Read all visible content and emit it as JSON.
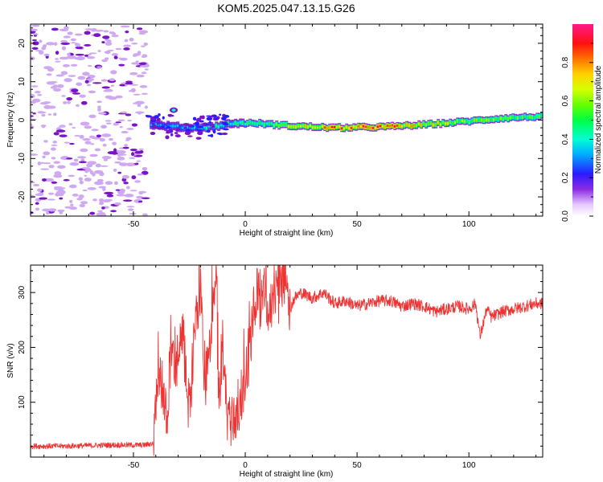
{
  "title": "KOM5.2025.047.13.15.G26",
  "colors": {
    "snr_line": "#ee3333",
    "spectrum_outline": "#7a14c8",
    "spectrum_speckle": "#cfa8f2"
  },
  "chart_data": [
    {
      "type": "heatmap",
      "name": "spectrogram",
      "xlabel": "Height of straight line (km)",
      "ylabel": "Frequency (Hz)",
      "xlim": [
        -96,
        133
      ],
      "ylim": [
        -25,
        25
      ],
      "xticks": [
        -50,
        0,
        50,
        100
      ],
      "yticks": [
        -20,
        -10,
        0,
        10,
        20
      ],
      "colorbar": {
        "label": "Normalized spectral amplitude",
        "range": [
          0,
          1
        ],
        "ticks": [
          "0.0",
          "0.2",
          "0.4",
          "0.6",
          "0.8"
        ],
        "tick_values": [
          0.0,
          0.2,
          0.4,
          0.6,
          0.8
        ]
      },
      "ridge": {
        "x": [
          -42,
          -35,
          -25,
          -15,
          -5,
          5,
          20,
          40,
          60,
          80,
          100,
          115,
          133
        ],
        "y": [
          -1.2,
          -1.5,
          -2.0,
          -1.8,
          -0.8,
          -0.8,
          -1.5,
          -2.0,
          -1.8,
          -1.2,
          -0.3,
          0.5,
          1.0
        ],
        "amplitude": [
          0.3,
          0.3,
          0.35,
          0.4,
          0.45,
          0.45,
          0.6,
          0.85,
          0.85,
          0.7,
          0.55,
          0.55,
          0.5
        ]
      },
      "noise_region_x": [
        -96,
        -44
      ]
    },
    {
      "type": "line",
      "name": "snr",
      "xlabel": "Height of straight line (km)",
      "ylabel": "SNR (v/v)",
      "xlim": [
        -96,
        133
      ],
      "ylim": [
        0,
        350
      ],
      "xticks": [
        -50,
        0,
        50,
        100
      ],
      "yticks": [
        100,
        200,
        300
      ],
      "series": [
        {
          "x": [
            -96,
            -80,
            -60,
            -45,
            -41,
            -39,
            -37,
            -35,
            -33,
            -31,
            -28,
            -25,
            -22,
            -20,
            -18,
            -15,
            -13,
            -12,
            -10,
            -8,
            -5,
            -2,
            0,
            2,
            4,
            6,
            7,
            8,
            10,
            12,
            15,
            18,
            20,
            22,
            25,
            30,
            35,
            40,
            45,
            50,
            55,
            60,
            65,
            70,
            75,
            80,
            85,
            90,
            95,
            100,
            103,
            105,
            108,
            110,
            115,
            120,
            125,
            130,
            133
          ],
          "y": [
            20,
            20,
            22,
            22,
            25,
            160,
            120,
            80,
            200,
            150,
            220,
            90,
            250,
            310,
            130,
            220,
            330,
            100,
            200,
            80,
            70,
            100,
            140,
            200,
            260,
            300,
            220,
            340,
            250,
            290,
            300,
            340,
            270,
            290,
            300,
            290,
            300,
            280,
            285,
            275,
            280,
            285,
            285,
            275,
            280,
            275,
            265,
            270,
            275,
            270,
            280,
            220,
            270,
            255,
            265,
            270,
            275,
            280,
            280
          ]
        }
      ]
    }
  ]
}
